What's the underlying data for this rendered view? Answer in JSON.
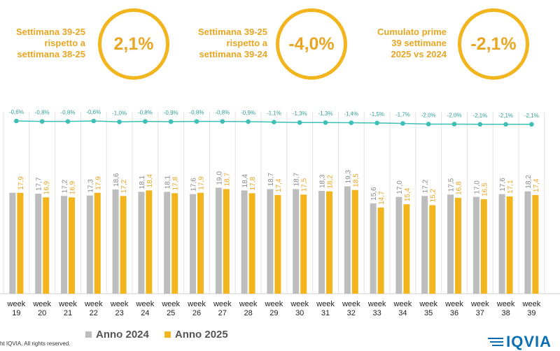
{
  "kpis": [
    {
      "label": "Settimana 39-25\nrispetto a\nsettimana 38-25",
      "value": "2,1%"
    },
    {
      "label": "Settimana 39-25\nrispetto a\nsettimana 39-24",
      "value": "-4,0%"
    },
    {
      "label": "Cumulato prime\n39 settimane\n2025 vs 2024",
      "value": "-2,1%"
    }
  ],
  "colors": {
    "series2024": "#BDBDBD",
    "series2025": "#F2B51D",
    "line": "#3DBFB6",
    "kpi": "#E8A623"
  },
  "chart_data": {
    "type": "bar",
    "categories": [
      "week\n19",
      "week\n20",
      "week\n21",
      "week\n22",
      "week\n23",
      "week\n24",
      "week\n25",
      "week\n26",
      "week\n27",
      "week\n28",
      "week\n29",
      "week\n30",
      "week\n31",
      "week\n32",
      "week\n33",
      "week\n34",
      "week\n35",
      "week\n36",
      "week\n37",
      "week\n38",
      "week\n39"
    ],
    "series": [
      {
        "name": "Anno 2024",
        "values": [
          17.9,
          17.7,
          17.2,
          17.3,
          18.6,
          18.1,
          18.1,
          17.6,
          19.0,
          18.4,
          18.7,
          18.7,
          18.3,
          19.3,
          15.6,
          17.0,
          17.2,
          17.5,
          17.0,
          17.6,
          18.2
        ],
        "labels": [
          "",
          "17,7",
          "17,2",
          "17,3",
          "18,6",
          "18,1",
          "18,1",
          "17,6",
          "19,0",
          "18,4",
          "18,7",
          "18,7",
          "18,3",
          "19,3",
          "15,6",
          "17,0",
          "17,2",
          "17,5",
          "17,0",
          "17,6",
          "18,2"
        ]
      },
      {
        "name": "Anno 2025",
        "values": [
          17.9,
          16.9,
          16.9,
          17.9,
          17.2,
          18.4,
          17.8,
          17.9,
          18.7,
          17.8,
          17.4,
          17.5,
          18.2,
          18.5,
          14.7,
          15.4,
          15.2,
          16.8,
          16.5,
          17.1,
          17.4
        ],
        "labels": [
          "17,9",
          "16,9",
          "16,9",
          "17,9",
          "17,2",
          "18,4",
          "17,8",
          "17,9",
          "18,7",
          "17,8",
          "17,4",
          "17,5",
          "18,2",
          "18,5",
          "14,7",
          "15,4",
          "15,2",
          "16,8",
          "16,5",
          "17,1",
          "17,4"
        ]
      }
    ],
    "line_series": {
      "values": [
        -0.6,
        -0.8,
        -0.8,
        -0.6,
        -1.0,
        -0.8,
        -0.9,
        -0.8,
        -0.8,
        -0.9,
        -1.1,
        -1.3,
        -1.3,
        -1.4,
        -1.5,
        -1.7,
        -2.0,
        -2.0,
        -2.1,
        -2.1,
        -2.1
      ],
      "labels": [
        "-0,6%",
        "-0,8%",
        "-0,8%",
        "-0,6%",
        "-1,0%",
        "-0,8%",
        "-0,9%",
        "-0,8%",
        "-0,8%",
        "-0,9%",
        "-1,1%",
        "-1,3%",
        "-1,3%",
        "-1,4%",
        "-1,5%",
        "-1,7%",
        "-2,0%",
        "-2,0%",
        "-2,1%",
        "-2,1%",
        "-2,1%"
      ]
    }
  },
  "legend": {
    "item2024": "Anno 2024",
    "item2025": "Anno 2025"
  },
  "footer": {
    "copyright": "ht IQVIA. All rights reserved.",
    "logo": "IQVIA"
  }
}
